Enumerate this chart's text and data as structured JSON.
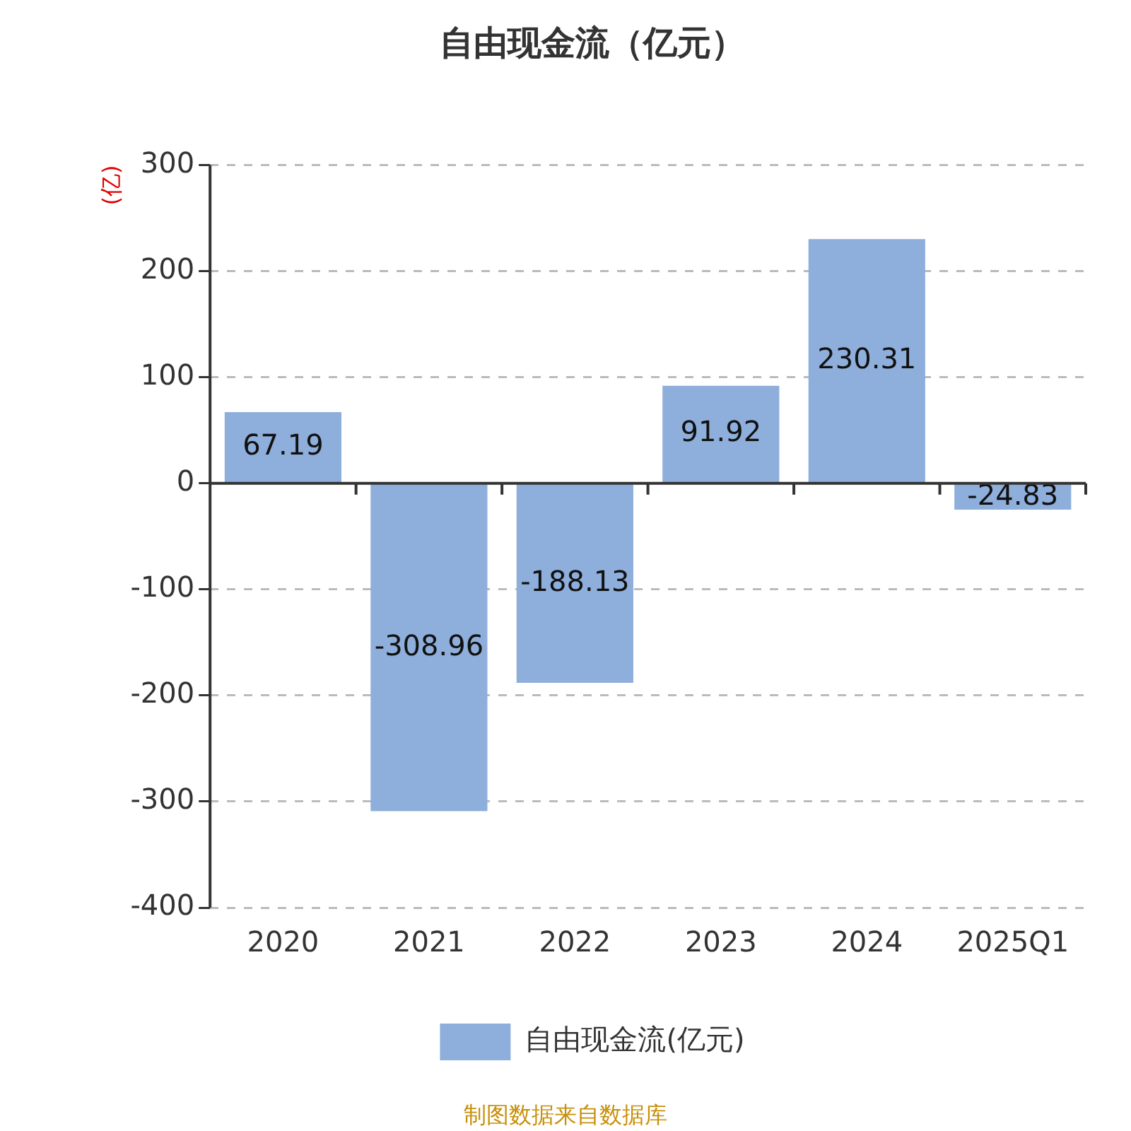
{
  "chart_data": {
    "type": "bar",
    "title": "自由现金流（亿元）",
    "ylabel": "(亿)",
    "categories": [
      "2020",
      "2021",
      "2022",
      "2023",
      "2024",
      "2025Q1"
    ],
    "series": [
      {
        "name": "自由现金流(亿元)",
        "color": "#8eaedb",
        "values": [
          67.19,
          -308.96,
          -188.13,
          91.92,
          230.31,
          -24.83
        ]
      }
    ],
    "ylim": [
      -400,
      300
    ],
    "yticks": [
      -400,
      -300,
      -200,
      -100,
      0,
      100,
      200,
      300
    ],
    "grid": "y",
    "legend": "bottom",
    "data_labels": true,
    "annotations": [
      "制图数据来自数据库"
    ]
  }
}
